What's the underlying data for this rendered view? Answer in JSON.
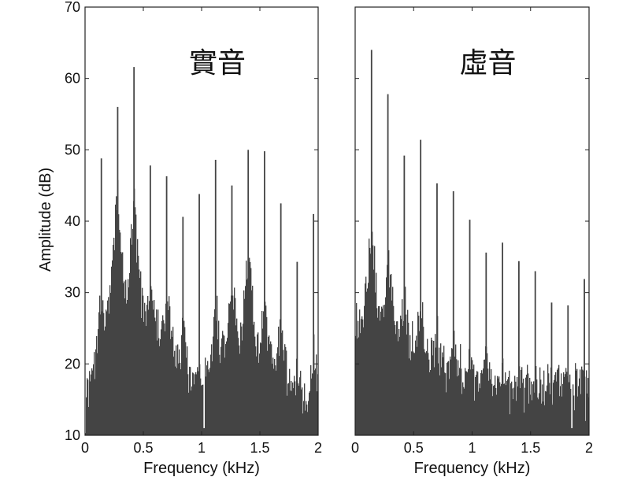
{
  "figure": {
    "ylabel": "Amplitude (dB)",
    "bar_color": "#444444",
    "frame_color": "#222222"
  },
  "chart_data": [
    {
      "type": "bar",
      "title": "實音",
      "xlabel": "Frequency (kHz)",
      "ylabel": "Amplitude (dB)",
      "xlim": [
        0,
        2
      ],
      "ylim": [
        10,
        70
      ],
      "xticks": [
        "0",
        "0.5",
        "1",
        "1.5",
        "2"
      ],
      "yticks": [
        "10",
        "20",
        "30",
        "40",
        "50",
        "60",
        "70"
      ],
      "grid": false,
      "peaks": [
        {
          "f": 0.14,
          "db": 48.8,
          "base": 31,
          "w": 0.05
        },
        {
          "f": 0.28,
          "db": 56.0,
          "base": 45,
          "w": 0.1
        },
        {
          "f": 0.42,
          "db": 61.6,
          "base": 43,
          "w": 0.1
        },
        {
          "f": 0.56,
          "db": 47.8,
          "base": 33,
          "w": 0.08
        },
        {
          "f": 0.7,
          "db": 46.3,
          "base": 30,
          "w": 0.08
        },
        {
          "f": 0.84,
          "db": 40.6,
          "base": 25,
          "w": 0.05
        },
        {
          "f": 0.98,
          "db": 43.8,
          "base": 22,
          "w": 0.03
        },
        {
          "f": 1.12,
          "db": 48.6,
          "base": 30,
          "w": 0.05
        },
        {
          "f": 1.26,
          "db": 45.0,
          "base": 33,
          "w": 0.08
        },
        {
          "f": 1.4,
          "db": 50.0,
          "base": 36,
          "w": 0.08
        },
        {
          "f": 1.54,
          "db": 49.8,
          "base": 30,
          "w": 0.06
        },
        {
          "f": 1.68,
          "db": 42.5,
          "base": 27,
          "w": 0.05
        },
        {
          "f": 1.82,
          "db": 34.3,
          "base": 20,
          "w": 0.03
        },
        {
          "f": 1.96,
          "db": 41.0,
          "base": 22,
          "w": 0.04
        }
      ],
      "floor_db": [
        [
          0.0,
          11
        ],
        [
          0.03,
          14
        ],
        [
          0.08,
          18
        ],
        [
          0.2,
          24
        ],
        [
          0.35,
          26
        ],
        [
          0.5,
          26
        ],
        [
          0.62,
          24
        ],
        [
          0.8,
          21
        ],
        [
          0.9,
          16
        ],
        [
          0.96,
          14
        ],
        [
          1.0,
          15
        ],
        [
          1.06,
          19
        ],
        [
          1.2,
          21
        ],
        [
          1.34,
          22
        ],
        [
          1.48,
          20
        ],
        [
          1.6,
          18
        ],
        [
          1.75,
          15
        ],
        [
          1.88,
          13
        ],
        [
          2.0,
          14
        ]
      ],
      "dips": [
        [
          1.02,
          11
        ]
      ]
    },
    {
      "type": "bar",
      "title": "虛音",
      "xlabel": "Frequency (kHz)",
      "ylabel": "",
      "xlim": [
        0,
        2
      ],
      "ylim": [
        10,
        70
      ],
      "xticks": [
        "0",
        "0.5",
        "1",
        "1.5",
        "2"
      ],
      "grid": false,
      "peaks": [
        {
          "f": 0.14,
          "db": 64.0,
          "base": 40,
          "w": 0.1
        },
        {
          "f": 0.28,
          "db": 57.8,
          "base": 35,
          "w": 0.1
        },
        {
          "f": 0.42,
          "db": 49.2,
          "base": 30,
          "w": 0.07
        },
        {
          "f": 0.56,
          "db": 51.4,
          "base": 29,
          "w": 0.07
        },
        {
          "f": 0.7,
          "db": 45.3,
          "base": 25,
          "w": 0.05
        },
        {
          "f": 0.84,
          "db": 44.2,
          "base": 24,
          "w": 0.05
        },
        {
          "f": 0.98,
          "db": 40.2,
          "base": 22,
          "w": 0.04
        },
        {
          "f": 1.12,
          "db": 35.6,
          "base": 21,
          "w": 0.04
        },
        {
          "f": 1.26,
          "db": 37.0,
          "base": 20,
          "w": 0.04
        },
        {
          "f": 1.4,
          "db": 34.4,
          "base": 19,
          "w": 0.03
        },
        {
          "f": 1.54,
          "db": 33.0,
          "base": 18,
          "w": 0.03
        },
        {
          "f": 1.68,
          "db": 28.6,
          "base": 17,
          "w": 0.03
        },
        {
          "f": 1.82,
          "db": 28.2,
          "base": 18,
          "w": 0.03
        },
        {
          "f": 1.96,
          "db": 31.9,
          "base": 19,
          "w": 0.03
        }
      ],
      "floor_db": [
        [
          0.0,
          26
        ],
        [
          0.1,
          25
        ],
        [
          0.3,
          24
        ],
        [
          0.5,
          22
        ],
        [
          0.7,
          20
        ],
        [
          0.9,
          19
        ],
        [
          1.1,
          17
        ],
        [
          1.3,
          16
        ],
        [
          1.5,
          16
        ],
        [
          1.7,
          16
        ],
        [
          1.9,
          17
        ],
        [
          2.0,
          16
        ]
      ],
      "dips": [
        [
          1.85,
          11
        ],
        [
          1.97,
          12
        ]
      ]
    }
  ]
}
